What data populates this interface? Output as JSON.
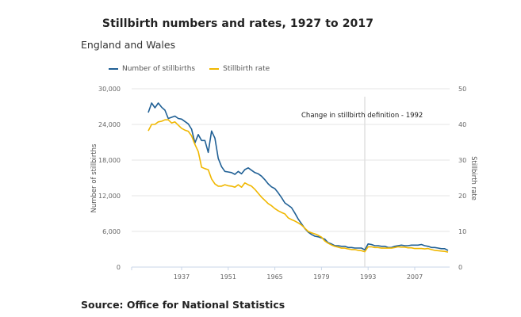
{
  "header": {
    "title": "Stillbirth numbers and rates, 1927 to 2017",
    "subtitle": "England and Wales"
  },
  "footer": {
    "source": "Source: Office for National Statistics"
  },
  "chart_data": {
    "type": "line",
    "title": "Stillbirth numbers and rates, 1927 to 2017",
    "subtitle": "England and Wales",
    "xlabel": "",
    "ylabel": "Number of stillbirths",
    "y2label": "Stillbirth rate",
    "xlim": [
      1922,
      2017
    ],
    "ylim": [
      0,
      30000
    ],
    "y2lim": [
      0,
      50
    ],
    "x_ticks": [
      1937,
      1951,
      1965,
      1979,
      1993,
      2007
    ],
    "y_ticks": [
      0,
      6000,
      12000,
      18000,
      24000,
      30000
    ],
    "y_tick_labels": [
      "0",
      "6,000",
      "12,000",
      "18,000",
      "24,000",
      "30,000"
    ],
    "y2_ticks": [
      0,
      10,
      20,
      30,
      40,
      50
    ],
    "y2_tick_labels": [
      "0",
      "10",
      "20",
      "30",
      "40",
      "50"
    ],
    "grid": true,
    "legend_position": "top-left",
    "x": [
      1927,
      1928,
      1929,
      1930,
      1931,
      1932,
      1933,
      1934,
      1935,
      1936,
      1937,
      1938,
      1939,
      1940,
      1941,
      1942,
      1943,
      1944,
      1945,
      1946,
      1947,
      1948,
      1949,
      1950,
      1951,
      1952,
      1953,
      1954,
      1955,
      1956,
      1957,
      1958,
      1959,
      1960,
      1961,
      1962,
      1963,
      1964,
      1965,
      1966,
      1967,
      1968,
      1969,
      1970,
      1971,
      1972,
      1973,
      1974,
      1975,
      1976,
      1977,
      1978,
      1979,
      1980,
      1981,
      1982,
      1983,
      1984,
      1985,
      1986,
      1987,
      1988,
      1989,
      1990,
      1991,
      1992,
      1993,
      1994,
      1995,
      1996,
      1997,
      1998,
      1999,
      2000,
      2001,
      2002,
      2003,
      2004,
      2005,
      2006,
      2007,
      2008,
      2009,
      2010,
      2011,
      2012,
      2013,
      2014,
      2015,
      2016,
      2017
    ],
    "series": [
      {
        "name": "Number of stillbirths",
        "axis": "left",
        "color": "#206095",
        "values": [
          26000,
          27600,
          26800,
          27600,
          26900,
          26400,
          25000,
          25200,
          25400,
          25000,
          24900,
          24500,
          24100,
          23200,
          20900,
          22300,
          21300,
          21300,
          19300,
          22900,
          21700,
          18300,
          16900,
          16100,
          16000,
          15900,
          15600,
          16100,
          15700,
          16400,
          16700,
          16300,
          15900,
          15700,
          15300,
          14700,
          14000,
          13500,
          13200,
          12500,
          11700,
          10800,
          10400,
          10000,
          9100,
          8100,
          7300,
          6500,
          5900,
          5500,
          5200,
          5100,
          4900,
          4700,
          4100,
          3900,
          3600,
          3600,
          3500,
          3500,
          3300,
          3300,
          3200,
          3200,
          3200,
          2900,
          3900,
          3800,
          3600,
          3600,
          3500,
          3500,
          3300,
          3300,
          3500,
          3600,
          3700,
          3600,
          3600,
          3700,
          3700,
          3700,
          3800,
          3600,
          3500,
          3300,
          3300,
          3200,
          3100,
          3100,
          2800
        ]
      },
      {
        "name": "Stillbirth rate",
        "axis": "right",
        "color": "#F0B700",
        "values": [
          38.2,
          40.0,
          40.0,
          40.7,
          40.9,
          41.3,
          41.3,
          40.4,
          40.7,
          39.8,
          38.9,
          38.4,
          38.1,
          36.8,
          34.4,
          32.4,
          28.0,
          27.6,
          27.3,
          24.7,
          23.3,
          22.7,
          22.7,
          23.1,
          22.8,
          22.7,
          22.4,
          23.1,
          22.4,
          23.6,
          23.1,
          22.7,
          21.8,
          20.7,
          19.6,
          18.7,
          17.8,
          17.2,
          16.4,
          15.8,
          15.3,
          14.9,
          13.8,
          13.3,
          12.9,
          12.4,
          11.8,
          10.9,
          10.0,
          9.6,
          9.3,
          8.9,
          8.4,
          7.3,
          6.7,
          6.2,
          5.8,
          5.6,
          5.3,
          5.3,
          5.1,
          4.9,
          4.9,
          4.7,
          4.6,
          4.3,
          5.7,
          5.7,
          5.5,
          5.5,
          5.3,
          5.3,
          5.3,
          5.3,
          5.5,
          5.7,
          5.6,
          5.6,
          5.4,
          5.4,
          5.2,
          5.2,
          5.2,
          5.1,
          5.2,
          4.9,
          4.7,
          4.6,
          4.5,
          4.4,
          4.2
        ]
      }
    ],
    "annotations": [
      {
        "x": 1992,
        "type": "vertical-line",
        "text": "Change in stillbirth definition - 1992"
      }
    ]
  }
}
